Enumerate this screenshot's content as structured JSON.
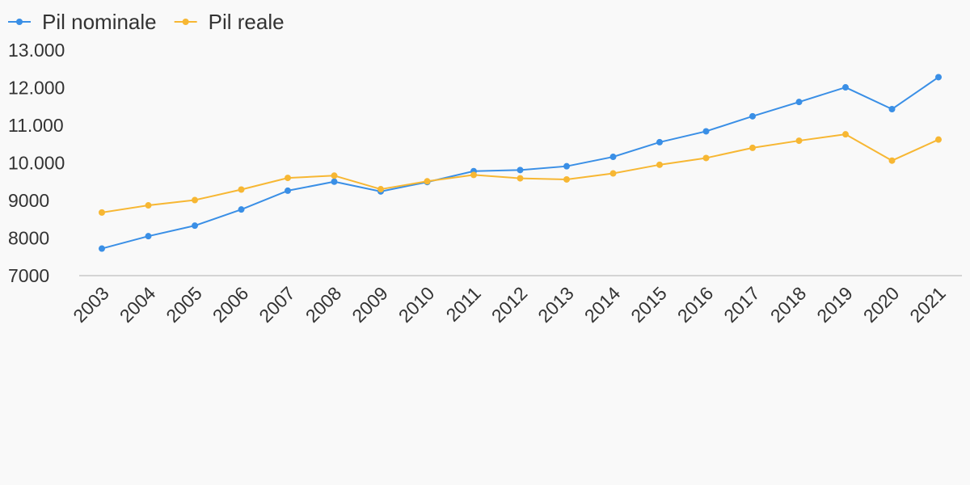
{
  "chart_data": {
    "type": "line",
    "categories": [
      "2003",
      "2004",
      "2005",
      "2006",
      "2007",
      "2008",
      "2009",
      "2010",
      "2011",
      "2012",
      "2013",
      "2014",
      "2015",
      "2016",
      "2017",
      "2018",
      "2019",
      "2020",
      "2021"
    ],
    "series": [
      {
        "name": "Pil nominale",
        "color": "#3a8fe6",
        "values": [
          7720,
          8050,
          8330,
          8760,
          9260,
          9500,
          9240,
          9490,
          9780,
          9810,
          9910,
          10160,
          10550,
          10840,
          11240,
          11620,
          12010,
          11430,
          12280
        ]
      },
      {
        "name": "Pil reale",
        "color": "#f7b733",
        "values": [
          8680,
          8870,
          9010,
          9290,
          9600,
          9660,
          9300,
          9510,
          9680,
          9590,
          9560,
          9720,
          9950,
          10130,
          10400,
          10590,
          10760,
          10060,
          10620
        ]
      }
    ],
    "ylim": [
      7000,
      13000
    ],
    "yticks": [
      {
        "value": 7000,
        "label": "7000"
      },
      {
        "value": 8000,
        "label": "8000"
      },
      {
        "value": 9000,
        "label": "9000"
      },
      {
        "value": 10000,
        "label": "10.000"
      },
      {
        "value": 11000,
        "label": "11.000"
      },
      {
        "value": 12000,
        "label": "12.000"
      },
      {
        "value": 13000,
        "label": "13.000"
      }
    ],
    "grid": false,
    "legend": "top-left",
    "axis_color": "#d4d4d4"
  }
}
